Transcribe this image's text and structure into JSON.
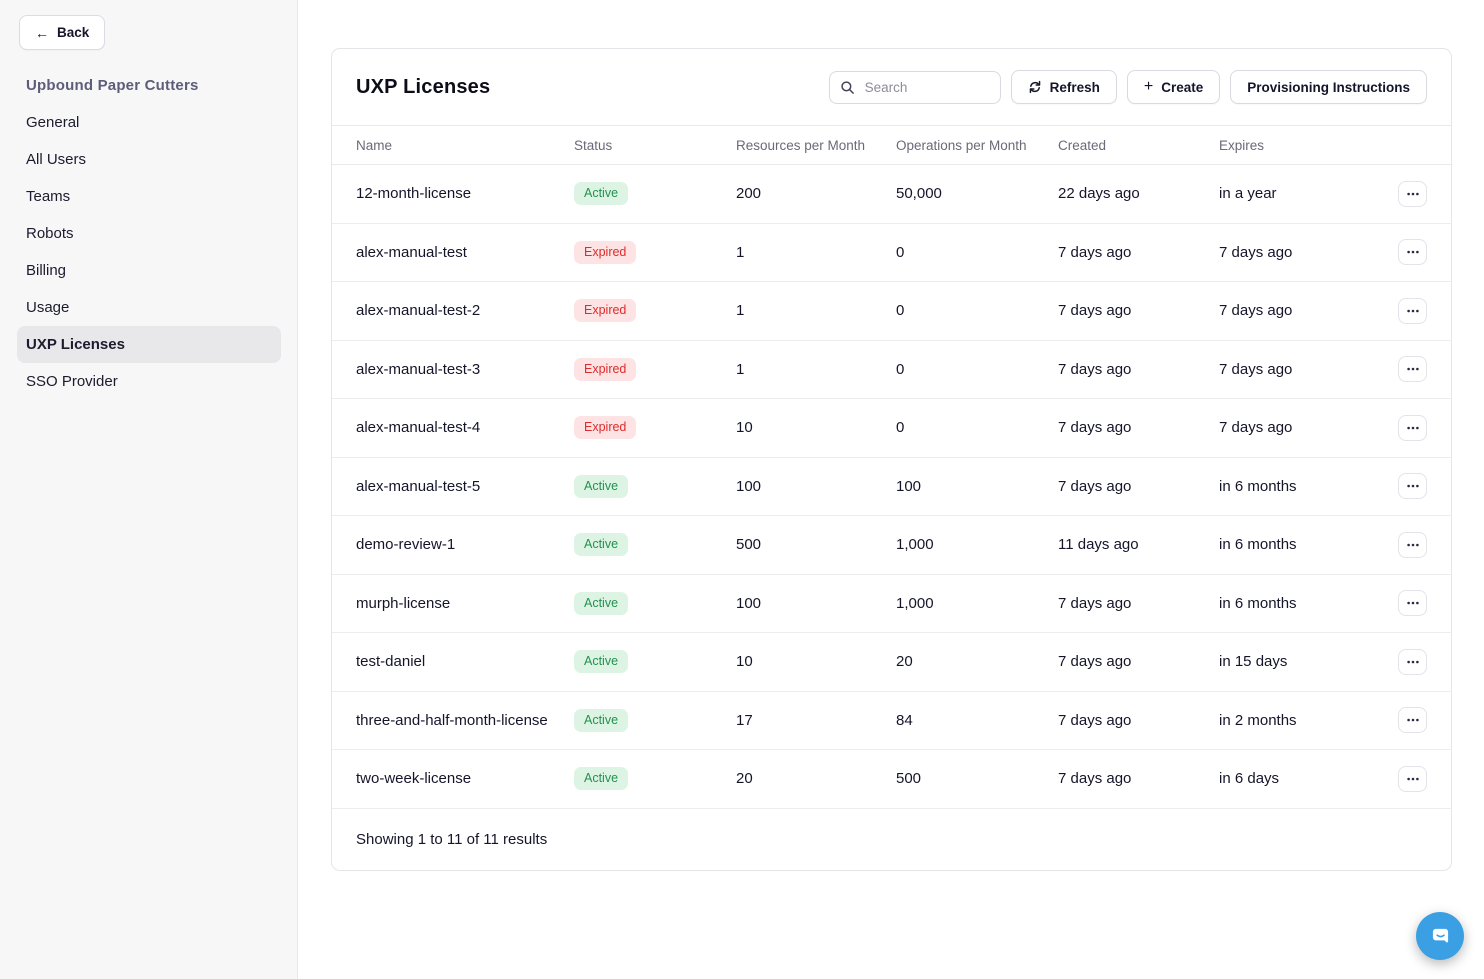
{
  "sidebar": {
    "back_label": "Back",
    "org_title": "Upbound Paper Cutters",
    "items": [
      {
        "label": "General",
        "active": false
      },
      {
        "label": "All Users",
        "active": false
      },
      {
        "label": "Teams",
        "active": false
      },
      {
        "label": "Robots",
        "active": false
      },
      {
        "label": "Billing",
        "active": false
      },
      {
        "label": "Usage",
        "active": false
      },
      {
        "label": "UXP Licenses",
        "active": true
      },
      {
        "label": "SSO Provider",
        "active": false
      }
    ]
  },
  "panel": {
    "title": "UXP Licenses",
    "search_placeholder": "Search",
    "refresh_label": "Refresh",
    "create_label": "Create",
    "provisioning_label": "Provisioning Instructions",
    "footer": "Showing 1 to 11 of 11 results"
  },
  "table": {
    "columns": [
      "Name",
      "Status",
      "Resources per Month",
      "Operations per Month",
      "Created",
      "Expires"
    ],
    "rows": [
      {
        "name": "12-month-license",
        "status": "Active",
        "resources": "200",
        "operations": "50,000",
        "created": "22 days ago",
        "expires": "in a year"
      },
      {
        "name": "alex-manual-test",
        "status": "Expired",
        "resources": "1",
        "operations": "0",
        "created": "7 days ago",
        "expires": "7 days ago"
      },
      {
        "name": "alex-manual-test-2",
        "status": "Expired",
        "resources": "1",
        "operations": "0",
        "created": "7 days ago",
        "expires": "7 days ago"
      },
      {
        "name": "alex-manual-test-3",
        "status": "Expired",
        "resources": "1",
        "operations": "0",
        "created": "7 days ago",
        "expires": "7 days ago"
      },
      {
        "name": "alex-manual-test-4",
        "status": "Expired",
        "resources": "10",
        "operations": "0",
        "created": "7 days ago",
        "expires": "7 days ago"
      },
      {
        "name": "alex-manual-test-5",
        "status": "Active",
        "resources": "100",
        "operations": "100",
        "created": "7 days ago",
        "expires": "in 6 months"
      },
      {
        "name": "demo-review-1",
        "status": "Active",
        "resources": "500",
        "operations": "1,000",
        "created": "11 days ago",
        "expires": "in 6 months"
      },
      {
        "name": "murph-license",
        "status": "Active",
        "resources": "100",
        "operations": "1,000",
        "created": "7 days ago",
        "expires": "in 6 months"
      },
      {
        "name": "test-daniel",
        "status": "Active",
        "resources": "10",
        "operations": "20",
        "created": "7 days ago",
        "expires": "in 15 days"
      },
      {
        "name": "three-and-half-month-license",
        "status": "Active",
        "resources": "17",
        "operations": "84",
        "created": "7 days ago",
        "expires": "in 2 months"
      },
      {
        "name": "two-week-license",
        "status": "Active",
        "resources": "20",
        "operations": "500",
        "created": "7 days ago",
        "expires": "in 6 days"
      }
    ]
  },
  "colors": {
    "active_bg": "#ddf4e4",
    "active_text": "#23914f",
    "expired_bg": "#fde3e3",
    "expired_text": "#dd2c2c",
    "chat_button": "#3ba0e3"
  }
}
